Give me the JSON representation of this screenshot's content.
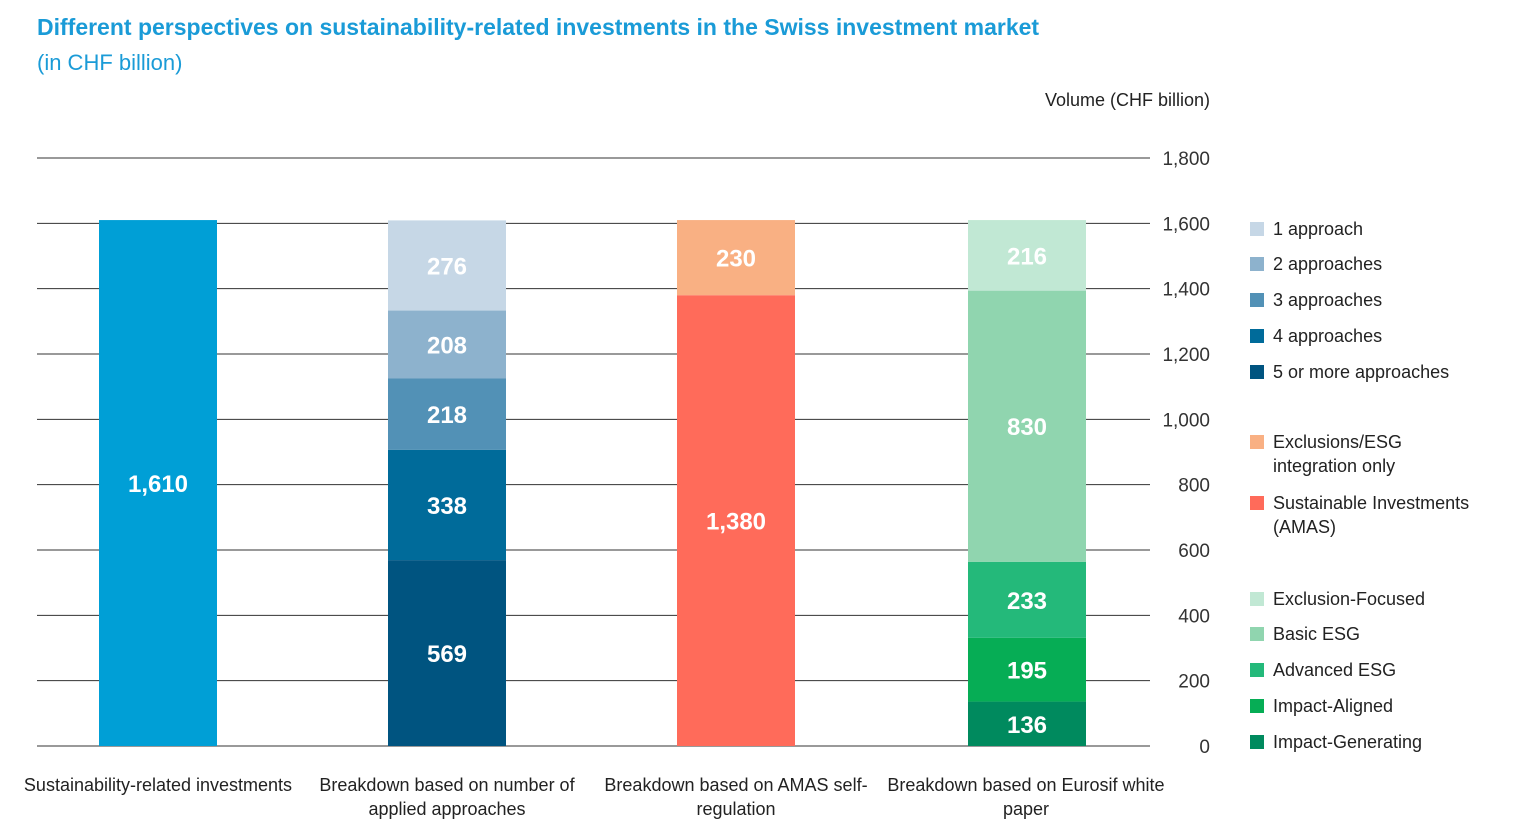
{
  "title": "Different perspectives on sustainability-related investments in the Swiss investment market",
  "subtitle": "(in CHF billion)",
  "chart_data": {
    "type": "bar",
    "stacked": true,
    "ylabel": "Volume (CHF billion)",
    "ylim": [
      0,
      1800
    ],
    "yticks": [
      0,
      200,
      400,
      600,
      800,
      1000,
      1200,
      1400,
      1600,
      1800
    ],
    "ytick_labels": [
      "0",
      "200",
      "400",
      "600",
      "800",
      "1,000",
      "1,200",
      "1,400",
      "1,600",
      "1,800"
    ],
    "grid": true,
    "legend_position": "right",
    "categories": [
      "Sustainability-related investments",
      "Breakdown based on number of applied approaches",
      "Breakdown based on AMAS self-regulation",
      "Breakdown based on Eurosif white paper"
    ],
    "bars": [
      {
        "segments": [
          {
            "name": "",
            "value": 1610,
            "label": "1,610",
            "color": "#009fd6"
          }
        ]
      },
      {
        "segments": [
          {
            "name": "5 or more approaches",
            "value": 569,
            "label": "569",
            "color": "#005480"
          },
          {
            "name": "4 approaches",
            "value": 338,
            "label": "338",
            "color": "#006b9a"
          },
          {
            "name": "3 approaches",
            "value": 218,
            "label": "218",
            "color": "#5291b6"
          },
          {
            "name": "2 approaches",
            "value": 208,
            "label": "208",
            "color": "#8db2cd"
          },
          {
            "name": "1 approach",
            "value": 276,
            "label": "276",
            "color": "#c6d7e6"
          }
        ]
      },
      {
        "segments": [
          {
            "name": "Sustainable Investments (AMAS)",
            "value": 1380,
            "label": "1,380",
            "color": "#ff6b5a"
          },
          {
            "name": "Exclusions/ESG integration only",
            "value": 230,
            "label": "230",
            "color": "#f9b083"
          }
        ]
      },
      {
        "segments": [
          {
            "name": "Impact-Generating",
            "value": 136,
            "label": "136",
            "color": "#008a5e"
          },
          {
            "name": "Impact-Aligned",
            "value": 195,
            "label": "195",
            "color": "#06ad55"
          },
          {
            "name": "Advanced ESG",
            "value": 233,
            "label": "233",
            "color": "#24b97a"
          },
          {
            "name": "Basic ESG",
            "value": 830,
            "label": "830",
            "color": "#90d5af"
          },
          {
            "name": "Exclusion-Focused",
            "value": 216,
            "label": "216",
            "color": "#c1e8d4"
          }
        ]
      }
    ]
  },
  "legend": [
    {
      "label": "1 approach",
      "color": "#c6d7e6"
    },
    {
      "label": "2 approaches",
      "color": "#8db2cd"
    },
    {
      "label": "3 approaches",
      "color": "#5291b6"
    },
    {
      "label": "4 approaches",
      "color": "#006b9a"
    },
    {
      "label": "5 or more approaches",
      "color": "#005480"
    },
    {
      "label": "Exclusions/ESG integration only",
      "color": "#f9b083"
    },
    {
      "label": "Sustainable Investments (AMAS)",
      "color": "#ff6b5a"
    },
    {
      "label": "Exclusion-Focused",
      "color": "#c1e8d4"
    },
    {
      "label": "Basic ESG",
      "color": "#90d5af"
    },
    {
      "label": "Advanced ESG",
      "color": "#24b97a"
    },
    {
      "label": "Impact-Aligned",
      "color": "#06ad55"
    },
    {
      "label": "Impact-Generating",
      "color": "#008a5e"
    }
  ]
}
